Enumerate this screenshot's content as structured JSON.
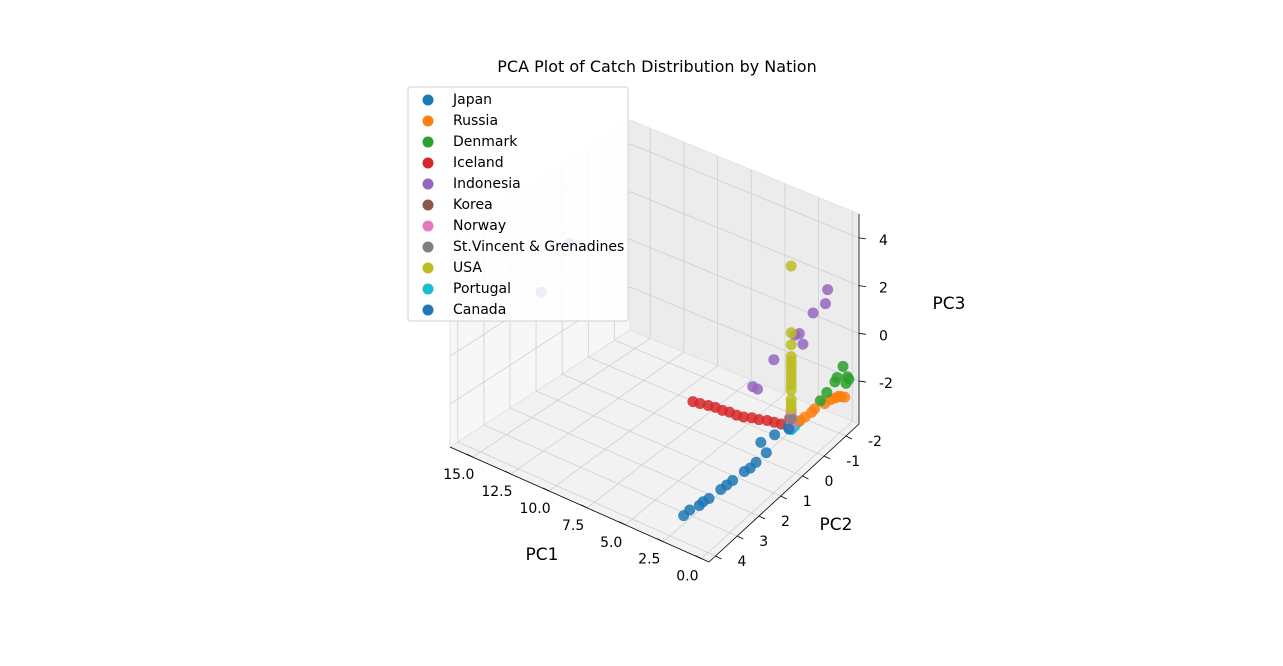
{
  "chart_data": {
    "type": "scatter",
    "projection": "3d",
    "title": "PCA Plot of Catch Distribution by Nation",
    "xlabel": "PC1",
    "ylabel": "PC2",
    "zlabel": "PC3",
    "xlim": [
      -0.5,
      16.5
    ],
    "ylim": [
      -2.6,
      4.3
    ],
    "zlim": [
      -3.8,
      5
    ],
    "x_ticks": [
      "15.0",
      "12.5",
      "10.0",
      "7.5",
      "5.0",
      "2.5",
      "0.0"
    ],
    "x_tick_values": [
      15,
      12.5,
      10,
      7.5,
      5,
      2.5,
      0
    ],
    "y_ticks": [
      "-2",
      "-1",
      "0",
      "1",
      "2",
      "3",
      "4"
    ],
    "y_tick_values": [
      -2,
      -1,
      0,
      1,
      2,
      3,
      4
    ],
    "z_ticks": [
      "-2",
      "0",
      "2",
      "4"
    ],
    "z_tick_values": [
      -2,
      0,
      2,
      4
    ],
    "grid": true,
    "legend_position": "top-left",
    "series": [
      {
        "name": "Japan",
        "color": "#1f77b4",
        "points": [
          [
            0.2,
            1.2,
            -2.0
          ],
          [
            0.3,
            1.6,
            -2.1
          ],
          [
            0.5,
            2.0,
            -2.2
          ],
          [
            0.7,
            2.4,
            -2.3
          ],
          [
            0.9,
            2.8,
            -2.4
          ],
          [
            1.1,
            3.2,
            -2.5
          ],
          [
            1.3,
            3.5,
            -2.6
          ],
          [
            1.5,
            3.8,
            -2.6
          ],
          [
            1.6,
            4.0,
            -2.7
          ],
          [
            0.4,
            1.8,
            -2.2
          ],
          [
            0.8,
            2.6,
            -2.35
          ],
          [
            1.2,
            3.4,
            -2.5
          ]
        ]
      },
      {
        "name": "Russia",
        "color": "#ff7f0e",
        "points": [
          [
            0.1,
            -0.5,
            -1.9
          ],
          [
            0.2,
            -1.0,
            -2.0
          ],
          [
            0.25,
            -1.5,
            -2.2
          ],
          [
            0.3,
            -2.0,
            -2.4
          ],
          [
            0.35,
            -2.3,
            -2.6
          ],
          [
            0.4,
            -2.5,
            -2.8
          ],
          [
            0.1,
            -0.8,
            -1.95
          ],
          [
            0.3,
            -1.8,
            -2.3
          ],
          [
            0.35,
            -2.2,
            -2.5
          ],
          [
            0.15,
            -0.3,
            -1.9
          ]
        ]
      },
      {
        "name": "Denmark",
        "color": "#2ca02c",
        "points": [
          [
            0.1,
            -1.5,
            -1.7
          ],
          [
            0.15,
            -2.0,
            -1.5
          ],
          [
            0.2,
            -2.3,
            -1.3
          ],
          [
            0.1,
            -1.2,
            -1.8
          ],
          [
            0.2,
            -2.5,
            -1.9
          ],
          [
            0.25,
            -2.6,
            -2.1
          ],
          [
            0.3,
            -2.5,
            -2.2
          ],
          [
            0.15,
            -1.9,
            -1.6
          ]
        ]
      },
      {
        "name": "Iceland",
        "color": "#d62728",
        "points": [
          [
            1.0,
            0.0,
            -2.0
          ],
          [
            2.0,
            0.0,
            -2.1
          ],
          [
            3.0,
            0.05,
            -2.2
          ],
          [
            4.0,
            0.1,
            -2.3
          ],
          [
            5.0,
            0.1,
            -2.35
          ],
          [
            6.0,
            0.1,
            -2.4
          ],
          [
            7.0,
            0.15,
            -2.45
          ],
          [
            1.5,
            0.0,
            -2.05
          ],
          [
            2.5,
            0.05,
            -2.15
          ],
          [
            3.5,
            0.1,
            -2.25
          ],
          [
            4.5,
            0.1,
            -2.3
          ],
          [
            5.5,
            0.1,
            -2.35
          ],
          [
            6.5,
            0.15,
            -2.4
          ]
        ]
      },
      {
        "name": "Indonesia",
        "color": "#9467bd",
        "points": [
          [
            16.0,
            0.0,
            1.8
          ],
          [
            16.5,
            0.8,
            0.2
          ],
          [
            3.0,
            -0.2,
            -1.2
          ],
          [
            3.5,
            -0.3,
            -1.3
          ],
          [
            2.0,
            -0.3,
            0.2
          ],
          [
            0.5,
            -0.5,
            1.5
          ],
          [
            0.3,
            -1.0,
            2.0
          ],
          [
            0.2,
            -1.5,
            2.0
          ],
          [
            0.4,
            -0.6,
            1.0
          ],
          [
            0.2,
            -1.6,
            2.5
          ],
          [
            0.5,
            -0.3,
            1.6
          ]
        ]
      },
      {
        "name": "Korea",
        "color": "#8c564b",
        "points": [
          [
            0.3,
            0.0,
            -1.5
          ],
          [
            0.4,
            0.0,
            -1.6
          ]
        ]
      },
      {
        "name": "Norway",
        "color": "#e377c2",
        "points": [
          [
            0.3,
            0.0,
            -1.3
          ],
          [
            0.3,
            0.0,
            -1.5
          ],
          [
            0.3,
            0.0,
            -1.7
          ],
          [
            0.3,
            0.0,
            -1.9
          ]
        ]
      },
      {
        "name": "St.Vincent & Grenadines",
        "color": "#7f7f7f",
        "points": [
          [
            0.3,
            0.0,
            -1.6
          ]
        ]
      },
      {
        "name": "USA",
        "color": "#bcbd22",
        "points": [
          [
            0.3,
            0.0,
            4.8
          ],
          [
            0.3,
            0.0,
            2.0
          ],
          [
            0.3,
            0.0,
            1.5
          ],
          [
            0.3,
            0.0,
            1.0
          ],
          [
            0.3,
            0.0,
            0.8
          ],
          [
            0.3,
            0.0,
            0.6
          ],
          [
            0.3,
            0.0,
            0.4
          ],
          [
            0.3,
            0.0,
            0.2
          ],
          [
            0.3,
            0.0,
            0.0
          ],
          [
            0.3,
            0.0,
            -0.2
          ],
          [
            0.3,
            0.0,
            -0.4
          ],
          [
            0.3,
            0.0,
            -0.8
          ],
          [
            0.3,
            0.0,
            -1.0
          ],
          [
            0.3,
            0.0,
            -1.2
          ]
        ]
      },
      {
        "name": "Portugal",
        "color": "#17becf",
        "points": [
          [
            0.8,
            -0.3,
            -2.4
          ],
          [
            1.0,
            -0.6,
            -2.6
          ],
          [
            1.2,
            -0.9,
            -2.7
          ],
          [
            0.6,
            -0.2,
            -2.3
          ]
        ]
      },
      {
        "name": "Canada",
        "color": "#1f77b4",
        "points": [
          [
            0.5,
            0.0,
            -2.0
          ],
          [
            1.0,
            0.3,
            -2.2
          ],
          [
            1.5,
            0.6,
            -2.4
          ],
          [
            0.3,
            0.1,
            -1.95
          ]
        ]
      }
    ]
  }
}
